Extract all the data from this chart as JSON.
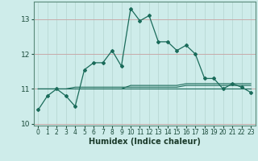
{
  "xlabel": "Humidex (Indice chaleur)",
  "x_values": [
    0,
    1,
    2,
    3,
    4,
    5,
    6,
    7,
    8,
    9,
    10,
    11,
    12,
    13,
    14,
    15,
    16,
    17,
    18,
    19,
    20,
    21,
    22,
    23
  ],
  "main_line": [
    10.4,
    10.8,
    11.0,
    10.8,
    10.5,
    11.55,
    11.75,
    11.75,
    12.1,
    11.65,
    13.3,
    12.95,
    13.1,
    12.35,
    12.35,
    12.1,
    12.25,
    12.0,
    11.3,
    11.3,
    11.0,
    11.15,
    11.05,
    10.9
  ],
  "flat_lines": [
    [
      11.0,
      11.0,
      11.0,
      11.0,
      11.0,
      11.0,
      11.0,
      11.0,
      11.0,
      11.0,
      11.0,
      11.0,
      11.0,
      11.0,
      11.0,
      11.0,
      11.0,
      11.0,
      11.0,
      11.0,
      11.0,
      11.0,
      11.0,
      11.0
    ],
    [
      11.0,
      11.0,
      11.0,
      11.0,
      11.05,
      11.05,
      11.05,
      11.05,
      11.05,
      11.05,
      11.05,
      11.05,
      11.05,
      11.05,
      11.05,
      11.05,
      11.1,
      11.1,
      11.1,
      11.1,
      11.1,
      11.1,
      11.1,
      11.1
    ],
    [
      11.0,
      11.0,
      11.0,
      11.0,
      11.0,
      11.0,
      11.0,
      11.0,
      11.0,
      11.0,
      11.1,
      11.1,
      11.1,
      11.1,
      11.1,
      11.1,
      11.15,
      11.15,
      11.15,
      11.15,
      11.15,
      11.15,
      11.15,
      11.15
    ]
  ],
  "line_color": "#1a6b5a",
  "bg_color": "#ceecea",
  "grid_color_h": "#c8aaaa",
  "grid_color_v": "#b8d8d4",
  "ylim": [
    9.95,
    13.5
  ],
  "yticks": [
    10,
    11,
    12,
    13
  ],
  "xticks": [
    0,
    1,
    2,
    3,
    4,
    5,
    6,
    7,
    8,
    9,
    10,
    11,
    12,
    13,
    14,
    15,
    16,
    17,
    18,
    19,
    20,
    21,
    22,
    23
  ]
}
